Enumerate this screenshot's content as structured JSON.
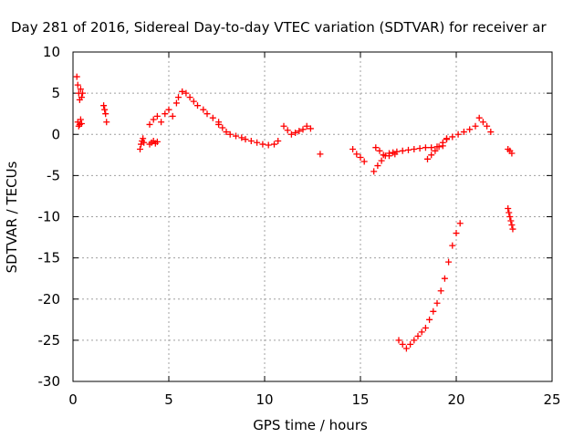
{
  "chart_data": {
    "type": "scatter",
    "title": "Day 281 of 2016, Sidereal Day-to-day VTEC variation (SDTVAR) for receiver ar",
    "xlabel": "GPS time / hours",
    "ylabel": "SDTVAR / TECUs",
    "xlim": [
      0,
      25
    ],
    "ylim": [
      -30,
      10
    ],
    "x_ticks": [
      0,
      5,
      10,
      15,
      20,
      25
    ],
    "y_ticks": [
      -30,
      -25,
      -20,
      -15,
      -10,
      -5,
      0,
      5,
      10
    ],
    "grid": true,
    "marker": "plus",
    "color": "#ff0000",
    "series": [
      {
        "name": "SDTVAR",
        "segments": [
          {
            "x": [
              0.2,
              0.25,
              0.3,
              0.35,
              0.4,
              0.45,
              0.5
            ],
            "y": [
              7.0,
              6.0,
              5.0,
              4.2,
              5.5,
              4.5,
              5.0
            ]
          },
          {
            "x": [
              0.25,
              0.3,
              0.35,
              0.4,
              0.45
            ],
            "y": [
              1.5,
              1.0,
              1.2,
              1.8,
              1.3
            ]
          },
          {
            "x": [
              1.6,
              1.65,
              1.7,
              1.75
            ],
            "y": [
              3.5,
              3.0,
              2.5,
              1.5
            ]
          },
          {
            "x": [
              3.5,
              3.55,
              3.6,
              3.65,
              3.7
            ],
            "y": [
              -1.8,
              -1.2,
              -0.8,
              -0.5,
              -1.0
            ]
          },
          {
            "x": [
              4.0,
              4.1,
              4.2,
              4.3,
              4.4
            ],
            "y": [
              -1.2,
              -1.0,
              -0.8,
              -1.1,
              -0.9
            ]
          },
          {
            "x": [
              4.0,
              4.2,
              4.4,
              4.6,
              4.8,
              5.0,
              5.2,
              5.4,
              5.5
            ],
            "y": [
              1.2,
              1.8,
              2.2,
              1.5,
              2.5,
              3.0,
              2.2,
              3.8,
              4.5
            ]
          },
          {
            "x": [
              5.7,
              5.9,
              6.1,
              6.3,
              6.5,
              6.8,
              7.0,
              7.3,
              7.6
            ],
            "y": [
              5.2,
              5.0,
              4.5,
              4.0,
              3.5,
              3.0,
              2.5,
              2.0,
              1.5
            ]
          },
          {
            "x": [
              7.6,
              7.8,
              8.0,
              8.2,
              8.5,
              8.8,
              9.0,
              9.3,
              9.6,
              9.9,
              10.2,
              10.5,
              10.7
            ],
            "y": [
              1.2,
              0.8,
              0.3,
              0.0,
              -0.2,
              -0.4,
              -0.6,
              -0.8,
              -1.0,
              -1.2,
              -1.3,
              -1.2,
              -0.8
            ]
          },
          {
            "x": [
              11.0,
              11.2,
              11.4,
              11.6,
              11.8,
              12.0,
              12.2,
              12.4
            ],
            "y": [
              1.0,
              0.5,
              0.0,
              0.2,
              0.4,
              0.6,
              1.0,
              0.7
            ]
          },
          {
            "x": [
              12.9
            ],
            "y": [
              -2.4
            ]
          },
          {
            "x": [
              14.6,
              14.8,
              15.0,
              15.2
            ],
            "y": [
              -1.8,
              -2.4,
              -2.8,
              -3.3
            ]
          },
          {
            "x": [
              15.7,
              15.9,
              16.1,
              16.3,
              16.5,
              16.7,
              16.9,
              17.2,
              17.5,
              17.8,
              18.1,
              18.4,
              18.7,
              19.0,
              19.3
            ],
            "y": [
              -4.5,
              -3.8,
              -3.2,
              -2.6,
              -2.3,
              -2.2,
              -2.1,
              -2.0,
              -1.9,
              -1.8,
              -1.7,
              -1.6,
              -1.6,
              -1.5,
              -1.4
            ]
          },
          {
            "x": [
              15.8,
              16.0,
              16.2,
              16.5,
              16.8
            ],
            "y": [
              -1.6,
              -2.0,
              -2.5,
              -2.6,
              -2.4
            ]
          },
          {
            "x": [
              18.5,
              18.7,
              18.9,
              19.1,
              19.3,
              19.5
            ],
            "y": [
              -3.0,
              -2.5,
              -2.0,
              -1.5,
              -1.0,
              -0.5
            ]
          },
          {
            "x": [
              19.5,
              19.8,
              20.1,
              20.4,
              20.7,
              21.0
            ],
            "y": [
              -0.6,
              -0.3,
              0.0,
              0.3,
              0.6,
              1.0
            ]
          },
          {
            "x": [
              21.2,
              21.4,
              21.6,
              21.8
            ],
            "y": [
              2.0,
              1.5,
              1.0,
              0.3
            ]
          },
          {
            "x": [
              22.7,
              22.8,
              22.9
            ],
            "y": [
              -1.8,
              -2.0,
              -2.3
            ]
          },
          {
            "x": [
              17.0,
              17.2,
              17.4,
              17.6,
              17.8,
              18.0,
              18.2,
              18.4,
              18.6,
              18.8,
              19.0,
              19.2,
              19.4,
              19.6,
              19.8,
              20.0,
              20.2
            ],
            "y": [
              -25.0,
              -25.5,
              -26.0,
              -25.5,
              -25.0,
              -24.5,
              -24.0,
              -23.5,
              -22.5,
              -21.5,
              -20.5,
              -19.0,
              -17.5,
              -15.5,
              -13.5,
              -12.0,
              -10.8
            ]
          },
          {
            "x": [
              22.7,
              22.75,
              22.8,
              22.85,
              22.9,
              22.95
            ],
            "y": [
              -9.0,
              -9.5,
              -10.0,
              -10.5,
              -11.0,
              -11.5
            ]
          }
        ]
      }
    ]
  }
}
